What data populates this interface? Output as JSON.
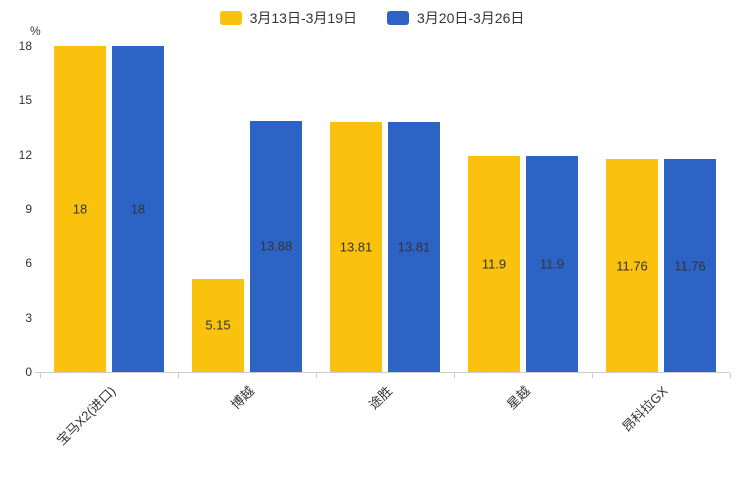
{
  "chart_data": {
    "type": "bar",
    "title": "",
    "categories": [
      "宝马X2(进口)",
      "博越",
      "途胜",
      "星越",
      "昂科拉GX"
    ],
    "series": [
      {
        "name": "3月13日-3月19日",
        "color": "#FAC20C",
        "values": [
          18,
          5.15,
          13.81,
          11.9,
          11.76
        ]
      },
      {
        "name": "3月20日-3月26日",
        "color": "#2E63C6",
        "values": [
          18,
          13.88,
          13.81,
          11.9,
          11.76
        ]
      }
    ],
    "xlabel": "",
    "ylabel": "%",
    "ylim": [
      0,
      18
    ],
    "yticks": [
      0,
      3,
      6,
      9,
      12,
      15,
      18
    ],
    "grid": false,
    "legend_position": "top",
    "data_labels": true,
    "data_label_color": "#333333",
    "axis_color": "#cccccc"
  }
}
